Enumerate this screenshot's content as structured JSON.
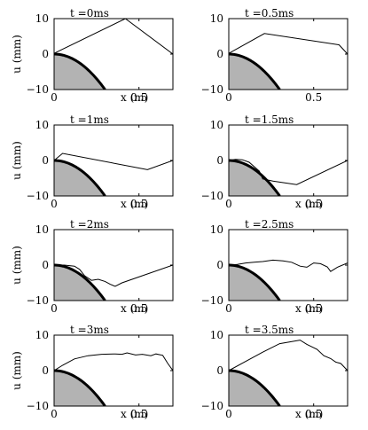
{
  "chart_data": [
    {
      "type": "line",
      "title": "t =0ms",
      "xlabel": "x (m)",
      "ylabel": "u (mm)",
      "xlim": [
        0,
        0.7
      ],
      "ylim": [
        -10,
        10
      ],
      "yticks": [
        "10",
        "0",
        "−10"
      ],
      "xticks": [
        "0",
        "0.5"
      ],
      "series": [
        {
          "x": [
            0,
            0.42,
            0.7
          ],
          "y": [
            0.2,
            10,
            0
          ]
        }
      ]
    },
    {
      "type": "line",
      "title": "t =0.5ms",
      "xlabel": "",
      "ylabel": "",
      "xlim": [
        0,
        0.7
      ],
      "ylim": [
        -10,
        10
      ],
      "yticks": [
        "10",
        "0",
        "−10"
      ],
      "xticks": [
        "0",
        "0.5"
      ],
      "series": [
        {
          "x": [
            0,
            0.21,
            0.65,
            0.7
          ],
          "y": [
            0.2,
            5.8,
            2.6,
            0
          ]
        }
      ]
    },
    {
      "type": "line",
      "title": "t =1ms",
      "xlabel": "x (m)",
      "ylabel": "u (mm)",
      "xlim": [
        0,
        0.7
      ],
      "ylim": [
        -10,
        10
      ],
      "yticks": [
        "10",
        "0",
        "−10"
      ],
      "xticks": [
        "0",
        "0.5"
      ],
      "series": [
        {
          "x": [
            0,
            0.05,
            0.55,
            0.7
          ],
          "y": [
            0,
            2,
            -2.6,
            0
          ]
        }
      ]
    },
    {
      "type": "line",
      "title": "t =1.5ms",
      "xlabel": "x (m)",
      "ylabel": "",
      "xlim": [
        0,
        0.7
      ],
      "ylim": [
        -10,
        10
      ],
      "yticks": [
        "10",
        "0",
        "−10"
      ],
      "xticks": [
        "0",
        "0.5"
      ],
      "series": [
        {
          "x": [
            0,
            0.04,
            0.08,
            0.12,
            0.18,
            0.2,
            0.26,
            0.4,
            0.7
          ],
          "y": [
            0,
            0.3,
            0.2,
            -0.5,
            -3,
            -5.2,
            -5.8,
            -6.8,
            0
          ]
        }
      ]
    },
    {
      "type": "line",
      "title": "t =2ms",
      "xlabel": "x (m)",
      "ylabel": "u (mm)",
      "xlim": [
        0,
        0.7
      ],
      "ylim": [
        -10,
        10
      ],
      "yticks": [
        "10",
        "0",
        "−10"
      ],
      "xticks": [
        "0",
        "0.5"
      ],
      "series": [
        {
          "x": [
            0,
            0.06,
            0.12,
            0.15,
            0.18,
            0.22,
            0.26,
            0.3,
            0.33,
            0.36,
            0.4,
            0.7
          ],
          "y": [
            0,
            0,
            -0.3,
            -1.2,
            -3,
            -4.3,
            -4,
            -4.6,
            -5.4,
            -6,
            -5,
            0
          ]
        }
      ]
    },
    {
      "type": "line",
      "title": "t =2.5ms",
      "xlabel": "x (m)",
      "ylabel": "",
      "xlim": [
        0,
        0.7
      ],
      "ylim": [
        -10,
        10
      ],
      "yticks": [
        "10",
        "0",
        "−10"
      ],
      "xticks": [
        "0",
        "0.5"
      ],
      "series": [
        {
          "x": [
            0,
            0.05,
            0.1,
            0.15,
            0.2,
            0.26,
            0.32,
            0.37,
            0.42,
            0.46,
            0.5,
            0.54,
            0.58,
            0.6,
            0.64,
            0.7
          ],
          "y": [
            0,
            0.2,
            0.6,
            0.8,
            1,
            1.4,
            1.2,
            0.8,
            -0.3,
            -0.6,
            0.6,
            0.4,
            -0.5,
            -1.8,
            -0.6,
            0.6
          ]
        }
      ]
    },
    {
      "type": "line",
      "title": "t =3ms",
      "xlabel": "x (m)",
      "ylabel": "u (mm)",
      "xlim": [
        0,
        0.7
      ],
      "ylim": [
        -10,
        10
      ],
      "yticks": [
        "10",
        "0",
        "−10"
      ],
      "xticks": [
        "0",
        "0.5"
      ],
      "series": [
        {
          "x": [
            0,
            0.05,
            0.12,
            0.2,
            0.28,
            0.36,
            0.4,
            0.43,
            0.48,
            0.52,
            0.57,
            0.6,
            0.64,
            0.67,
            0.7
          ],
          "y": [
            0,
            1.5,
            3.3,
            4.2,
            4.6,
            4.7,
            4.6,
            5,
            4.4,
            4.6,
            4.2,
            4.7,
            4.3,
            2,
            0
          ]
        }
      ]
    },
    {
      "type": "line",
      "title": "t =3.5ms",
      "xlabel": "x (m)",
      "ylabel": "",
      "xlim": [
        0,
        0.7
      ],
      "ylim": [
        -10,
        10
      ],
      "yticks": [
        "10",
        "0",
        "−10"
      ],
      "xticks": [
        "0",
        "0.5"
      ],
      "series": [
        {
          "x": [
            0,
            0.1,
            0.2,
            0.3,
            0.42,
            0.46,
            0.52,
            0.56,
            0.6,
            0.63,
            0.66,
            0.7
          ],
          "y": [
            0,
            2.6,
            5.2,
            7.6,
            8.6,
            7.4,
            6,
            4.2,
            3.4,
            2.4,
            2,
            0
          ]
        }
      ]
    }
  ]
}
